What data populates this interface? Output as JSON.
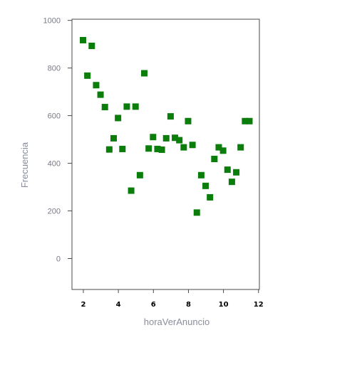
{
  "chart_data": {
    "type": "scatter",
    "xlabel": "horaVerAnuncio",
    "ylabel": "Frecuencia",
    "xlim": [
      1.35,
      12.05
    ],
    "ylim": [
      -130,
      1005
    ],
    "x_ticks": [
      2,
      4,
      6,
      8,
      10,
      12
    ],
    "x_tick_labels": [
      "2",
      "4",
      "6",
      "8",
      "10",
      "12"
    ],
    "y_ticks": [
      0,
      200,
      400,
      600,
      800,
      1000
    ],
    "y_tick_labels": [
      "0",
      "200",
      "400",
      "600",
      "800",
      "1000"
    ],
    "grid": false,
    "marker": "square",
    "color": "#0a7d0a",
    "x": [
      1.98,
      2.23,
      2.48,
      2.73,
      2.98,
      3.23,
      3.48,
      3.73,
      3.98,
      4.23,
      4.48,
      4.73,
      4.98,
      5.23,
      5.48,
      5.73,
      5.98,
      6.23,
      6.48,
      6.73,
      6.98,
      7.23,
      7.48,
      7.73,
      7.98,
      8.23,
      8.48,
      8.73,
      8.98,
      9.23,
      9.48,
      9.73,
      9.98,
      10.23,
      10.48,
      10.73,
      10.98,
      11.23,
      11.48
    ],
    "y": [
      917,
      768,
      893,
      728,
      688,
      636,
      458,
      505,
      590,
      460,
      638,
      285,
      638,
      350,
      778,
      462,
      510,
      460,
      457,
      505,
      597,
      507,
      497,
      467,
      577,
      477,
      193,
      350,
      305,
      257,
      418,
      467,
      453,
      373,
      322,
      362,
      467,
      577,
      577
    ]
  }
}
